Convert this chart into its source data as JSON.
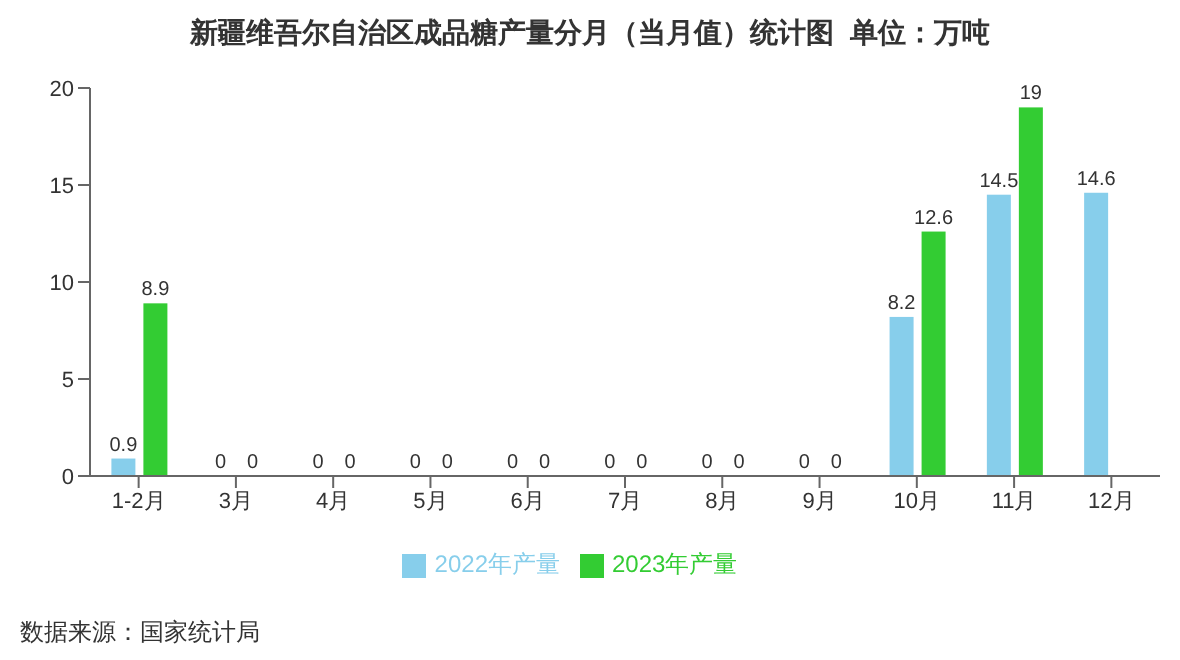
{
  "chart_data": {
    "type": "bar",
    "title": "新疆维吾尔自治区成品糖产量分月（当月值）统计图  单位：万吨",
    "categories": [
      "1-2月",
      "3月",
      "4月",
      "5月",
      "6月",
      "7月",
      "8月",
      "9月",
      "10月",
      "11月",
      "12月"
    ],
    "series": [
      {
        "name": "2022年产量",
        "color": "#87ceeb",
        "values": [
          0.9,
          0,
          0,
          0,
          0,
          0,
          0,
          0,
          8.2,
          14.5,
          14.6
        ]
      },
      {
        "name": "2023年产量",
        "color": "#33cc33",
        "values": [
          8.9,
          0,
          0,
          0,
          0,
          0,
          0,
          0,
          12.6,
          19,
          null
        ]
      }
    ],
    "ylim": [
      0,
      20
    ],
    "yticks": [
      0,
      5,
      10,
      15,
      20
    ],
    "data_labels": true,
    "legend": "bottom",
    "annotations": [
      "数据来源：国家统计局"
    ]
  }
}
